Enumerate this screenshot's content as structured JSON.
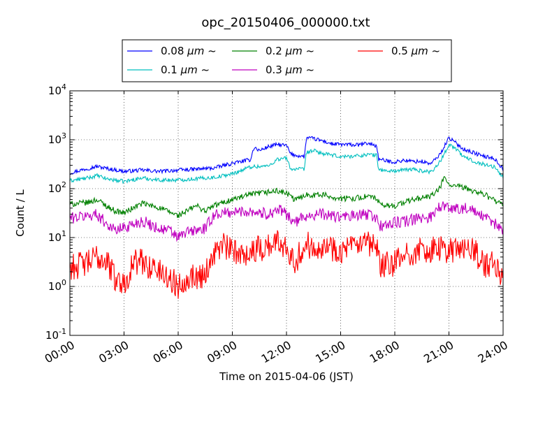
{
  "chart_data": {
    "type": "line",
    "title": "opc_20150406_000000.txt",
    "xlabel": "Time on 2015-04-06 (JST)",
    "ylabel": "Count / L",
    "xlim": [
      0,
      24
    ],
    "ylim": [
      0.1,
      10000
    ],
    "yscale": "log",
    "grid": true,
    "legend_position": "top (above plot)",
    "x_ticks": [
      {
        "value": 0,
        "label": "00:00"
      },
      {
        "value": 3,
        "label": "03:00"
      },
      {
        "value": 6,
        "label": "06:00"
      },
      {
        "value": 9,
        "label": "09:00"
      },
      {
        "value": 12,
        "label": "12:00"
      },
      {
        "value": 15,
        "label": "15:00"
      },
      {
        "value": 18,
        "label": "18:00"
      },
      {
        "value": 21,
        "label": "21:00"
      },
      {
        "value": 24,
        "label": "24:00"
      }
    ],
    "y_ticks": [
      {
        "value": 0.1,
        "base": "10",
        "exp": "-1"
      },
      {
        "value": 1,
        "base": "10",
        "exp": "0"
      },
      {
        "value": 10,
        "base": "10",
        "exp": "1"
      },
      {
        "value": 100,
        "base": "10",
        "exp": "2"
      },
      {
        "value": 1000,
        "base": "10",
        "exp": "3"
      },
      {
        "value": 10000,
        "base": "10",
        "exp": "4"
      }
    ],
    "legend_items": [
      {
        "num": "0.08",
        "color": "#0000ff"
      },
      {
        "num": "0.1",
        "color": "#00bfbf"
      },
      {
        "num": "0.2",
        "color": "#008000"
      },
      {
        "num": "0.3",
        "color": "#bf00bf"
      },
      {
        "num": "0.5",
        "color": "#ff0000"
      }
    ],
    "legend_unit": "μm",
    "legend_suffix": "~",
    "series": [
      {
        "name": "0.08 μm ~",
        "color": "#0000ff",
        "noise": 0.04,
        "points": [
          [
            0,
            210
          ],
          [
            1,
            260
          ],
          [
            1.5,
            285
          ],
          [
            2,
            260
          ],
          [
            3,
            225
          ],
          [
            4,
            240
          ],
          [
            5,
            225
          ],
          [
            6,
            240
          ],
          [
            7,
            250
          ],
          [
            8,
            265
          ],
          [
            9,
            330
          ],
          [
            10,
            390
          ],
          [
            10.2,
            700
          ],
          [
            10.5,
            600
          ],
          [
            11,
            720
          ],
          [
            11.5,
            800
          ],
          [
            12,
            760
          ],
          [
            12.25,
            500
          ],
          [
            13,
            450
          ],
          [
            13.1,
            1100
          ],
          [
            13.5,
            1050
          ],
          [
            14,
            950
          ],
          [
            14.5,
            820
          ],
          [
            15,
            800
          ],
          [
            16,
            780
          ],
          [
            16.5,
            850
          ],
          [
            17,
            750
          ],
          [
            17.1,
            400
          ],
          [
            17.5,
            370
          ],
          [
            18,
            350
          ],
          [
            18.5,
            380
          ],
          [
            19,
            360
          ],
          [
            19.5,
            360
          ],
          [
            20,
            320
          ],
          [
            20.5,
            500
          ],
          [
            21,
            1100
          ],
          [
            21.3,
            900
          ],
          [
            21.8,
            650
          ],
          [
            22.5,
            520
          ],
          [
            23,
            450
          ],
          [
            23.5,
            420
          ],
          [
            24,
            250
          ]
        ]
      },
      {
        "name": "0.1 μm ~",
        "color": "#00bfbf",
        "noise": 0.04,
        "points": [
          [
            0,
            145
          ],
          [
            1,
            165
          ],
          [
            1.5,
            185
          ],
          [
            2,
            160
          ],
          [
            3,
            140
          ],
          [
            4,
            165
          ],
          [
            5,
            150
          ],
          [
            6,
            150
          ],
          [
            7,
            160
          ],
          [
            8,
            170
          ],
          [
            9,
            200
          ],
          [
            10,
            280
          ],
          [
            11,
            290
          ],
          [
            11.5,
            400
          ],
          [
            12,
            420
          ],
          [
            12.25,
            250
          ],
          [
            13,
            250
          ],
          [
            13.1,
            550
          ],
          [
            13.5,
            600
          ],
          [
            14,
            520
          ],
          [
            15,
            450
          ],
          [
            16,
            470
          ],
          [
            16.5,
            500
          ],
          [
            17,
            480
          ],
          [
            17.1,
            250
          ],
          [
            17.5,
            230
          ],
          [
            18,
            230
          ],
          [
            18.5,
            240
          ],
          [
            19,
            250
          ],
          [
            19.5,
            230
          ],
          [
            20,
            220
          ],
          [
            20.5,
            350
          ],
          [
            21,
            800
          ],
          [
            21.3,
            700
          ],
          [
            21.8,
            450
          ],
          [
            22.5,
            350
          ],
          [
            23,
            310
          ],
          [
            23.5,
            280
          ],
          [
            24,
            170
          ]
        ]
      },
      {
        "name": "0.2 μm ~",
        "color": "#008000",
        "noise": 0.06,
        "points": [
          [
            0,
            48
          ],
          [
            1,
            52
          ],
          [
            1.5,
            60
          ],
          [
            2,
            45
          ],
          [
            2.5,
            35
          ],
          [
            3,
            32
          ],
          [
            4,
            50
          ],
          [
            5,
            40
          ],
          [
            6,
            28
          ],
          [
            6.5,
            35
          ],
          [
            7,
            45
          ],
          [
            7.5,
            35
          ],
          [
            8,
            45
          ],
          [
            9,
            60
          ],
          [
            10,
            75
          ],
          [
            11,
            85
          ],
          [
            11.5,
            90
          ],
          [
            12,
            80
          ],
          [
            12.5,
            58
          ],
          [
            13,
            75
          ],
          [
            14,
            75
          ],
          [
            15,
            62
          ],
          [
            16,
            65
          ],
          [
            16.5,
            70
          ],
          [
            17,
            62
          ],
          [
            17.2,
            45
          ],
          [
            18,
            45
          ],
          [
            19,
            60
          ],
          [
            20,
            70
          ],
          [
            20.5,
            100
          ],
          [
            20.7,
            170
          ],
          [
            21,
            120
          ],
          [
            22,
            100
          ],
          [
            23,
            75
          ],
          [
            24,
            45
          ]
        ]
      },
      {
        "name": "0.3 μm ~",
        "color": "#bf00bf",
        "noise": 0.12,
        "points": [
          [
            0,
            25
          ],
          [
            1,
            28
          ],
          [
            1.5,
            30
          ],
          [
            2,
            20
          ],
          [
            2.5,
            14
          ],
          [
            3,
            16
          ],
          [
            4,
            22
          ],
          [
            5,
            15
          ],
          [
            5.5,
            14
          ],
          [
            6,
            10
          ],
          [
            6.5,
            13
          ],
          [
            7,
            14
          ],
          [
            7.5,
            15
          ],
          [
            8,
            30
          ],
          [
            9,
            33
          ],
          [
            10,
            35
          ],
          [
            11,
            30
          ],
          [
            11.5,
            38
          ],
          [
            12,
            30
          ],
          [
            12.5,
            20
          ],
          [
            13,
            28
          ],
          [
            14,
            30
          ],
          [
            15,
            26
          ],
          [
            16,
            28
          ],
          [
            16.5,
            30
          ],
          [
            17,
            25
          ],
          [
            17.2,
            17
          ],
          [
            18,
            20
          ],
          [
            19,
            23
          ],
          [
            20,
            27
          ],
          [
            20.5,
            45
          ],
          [
            21,
            40
          ],
          [
            22,
            40
          ],
          [
            23,
            25
          ],
          [
            24,
            15
          ]
        ]
      },
      {
        "name": "0.5 μm ~",
        "color": "#ff0000",
        "noise": 0.28,
        "points": [
          [
            0,
            2.5
          ],
          [
            1,
            3
          ],
          [
            1.5,
            4
          ],
          [
            2,
            3.5
          ],
          [
            2.5,
            1.5
          ],
          [
            3,
            1.1
          ],
          [
            3.5,
            3
          ],
          [
            4,
            3.2
          ],
          [
            5,
            2
          ],
          [
            5.5,
            1.5
          ],
          [
            6,
            1.0
          ],
          [
            6.5,
            1.6
          ],
          [
            7,
            1.6
          ],
          [
            7.5,
            1.8
          ],
          [
            8,
            5
          ],
          [
            8.5,
            7
          ],
          [
            9,
            5
          ],
          [
            10,
            5
          ],
          [
            11,
            7
          ],
          [
            11.5,
            8
          ],
          [
            12,
            7
          ],
          [
            12.5,
            3.2
          ],
          [
            13,
            7
          ],
          [
            14,
            7
          ],
          [
            15,
            5.5
          ],
          [
            16,
            6.5
          ],
          [
            16.5,
            7
          ],
          [
            17,
            6
          ],
          [
            17.2,
            2.5
          ],
          [
            18,
            3
          ],
          [
            19,
            5
          ],
          [
            20,
            5.5
          ],
          [
            21,
            5.7
          ],
          [
            22,
            6
          ],
          [
            22.5,
            5
          ],
          [
            23,
            2.5
          ],
          [
            23.5,
            3
          ],
          [
            24,
            1.3
          ]
        ]
      }
    ]
  }
}
